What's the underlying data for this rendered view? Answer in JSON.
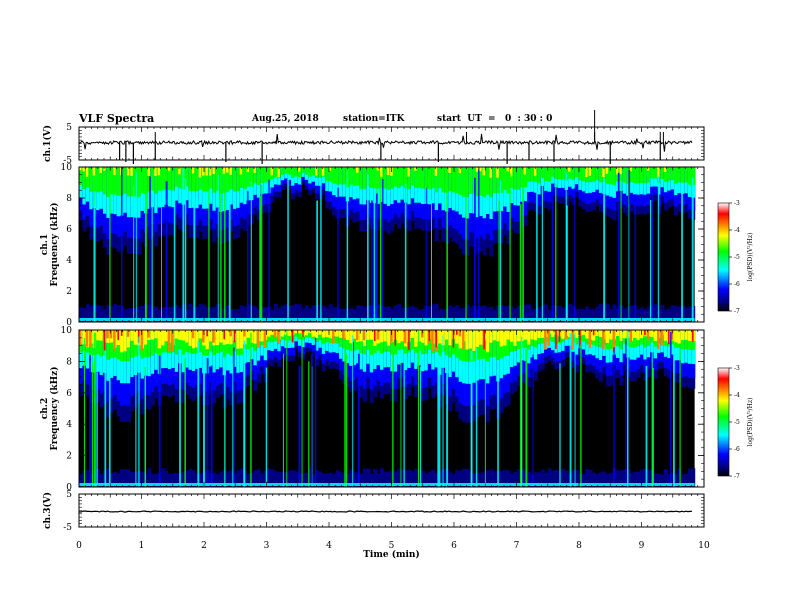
{
  "header": {
    "title": "VLF Spectra",
    "date": "Aug.25, 2018",
    "station": "station=ITK",
    "start_ut": "start  UT  =   0  : 30 : 0"
  },
  "chart_data": {
    "type": "heatmap",
    "x": {
      "label": "Time  (min)",
      "range": [
        0,
        10
      ],
      "ticks": [
        "0",
        "1",
        "2",
        "3",
        "4",
        "5",
        "6",
        "7",
        "8",
        "9",
        "10"
      ]
    },
    "waveform_ch1": {
      "label": "ch.1(V)",
      "ylim": [
        -5,
        5
      ],
      "ticks": [
        "5",
        "-5"
      ]
    },
    "spectrogram_ch1": {
      "label": "ch.1",
      "ylabel": "Frequency  (kHz)",
      "ylim": [
        0,
        10
      ],
      "ticks": [
        "0",
        "2",
        "4",
        "6",
        "8",
        "10"
      ],
      "data_end_min": 9.85
    },
    "spectrogram_ch2": {
      "label": "ch.2",
      "ylabel": "Frequency  (kHz)",
      "ylim": [
        0,
        10
      ],
      "ticks": [
        "0",
        "2",
        "4",
        "6",
        "8",
        "10"
      ],
      "data_end_min": 9.85
    },
    "waveform_ch3": {
      "label": "ch.3(V)",
      "ylim": [
        -5,
        5
      ],
      "ticks": [
        "5",
        "-5"
      ]
    },
    "colorbar": {
      "label": "log(PSD)(V²/Hz)",
      "range": [
        -7,
        -3
      ],
      "ticks": [
        "-3",
        "-4",
        "-5",
        "-6",
        "-7"
      ]
    },
    "grid": false,
    "colors": {
      "low": "#000000",
      "dark_blue": "#000080",
      "blue": "#0000ff",
      "cyan": "#00ffff",
      "green": "#00ff00",
      "yellow": "#ffff00",
      "orange": "#ff8000",
      "red": "#ff0000",
      "high": "#ffffff"
    }
  }
}
